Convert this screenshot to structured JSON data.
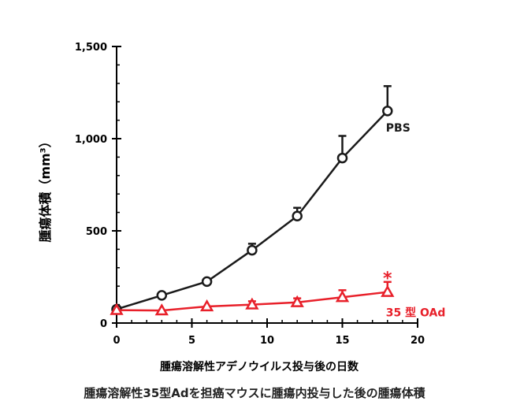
{
  "chart_data": {
    "type": "line",
    "title": "",
    "caption": "腫瘍溶解性35型Adを担癌マウスに腫瘍内投与した後の腫瘍体積",
    "xlabel": "腫瘍溶解性アデノウイルス投与後の日数",
    "ylabel": "腫瘍体積（mm³）",
    "xlim": [
      0,
      20
    ],
    "ylim": [
      0,
      1500
    ],
    "xticks": [
      0,
      5,
      10,
      15,
      20
    ],
    "xtick_labels": [
      "0",
      "5",
      "10",
      "15",
      "20"
    ],
    "yticks": [
      0,
      500,
      1000,
      1500
    ],
    "ytick_labels": [
      "0",
      "500",
      "1,000",
      "1,500"
    ],
    "grid": false,
    "series": [
      {
        "name": "PBS",
        "color": "#1a1a1a",
        "marker": "circle",
        "x": [
          0,
          3,
          6,
          9,
          12,
          15,
          18
        ],
        "y": [
          75,
          150,
          225,
          395,
          580,
          895,
          1150
        ],
        "error": [
          0,
          0,
          0,
          35,
          45,
          120,
          135
        ]
      },
      {
        "name": "35 型 OAd",
        "color": "#e8202a",
        "marker": "triangle",
        "x": [
          0,
          3,
          6,
          9,
          12,
          15,
          18
        ],
        "y": [
          70,
          68,
          90,
          100,
          112,
          140,
          168
        ],
        "error": [
          0,
          0,
          0,
          18,
          22,
          38,
          55
        ]
      }
    ],
    "annotations": [
      {
        "text": "*",
        "x": 18,
        "y": 245,
        "color": "#e8202a"
      }
    ]
  }
}
